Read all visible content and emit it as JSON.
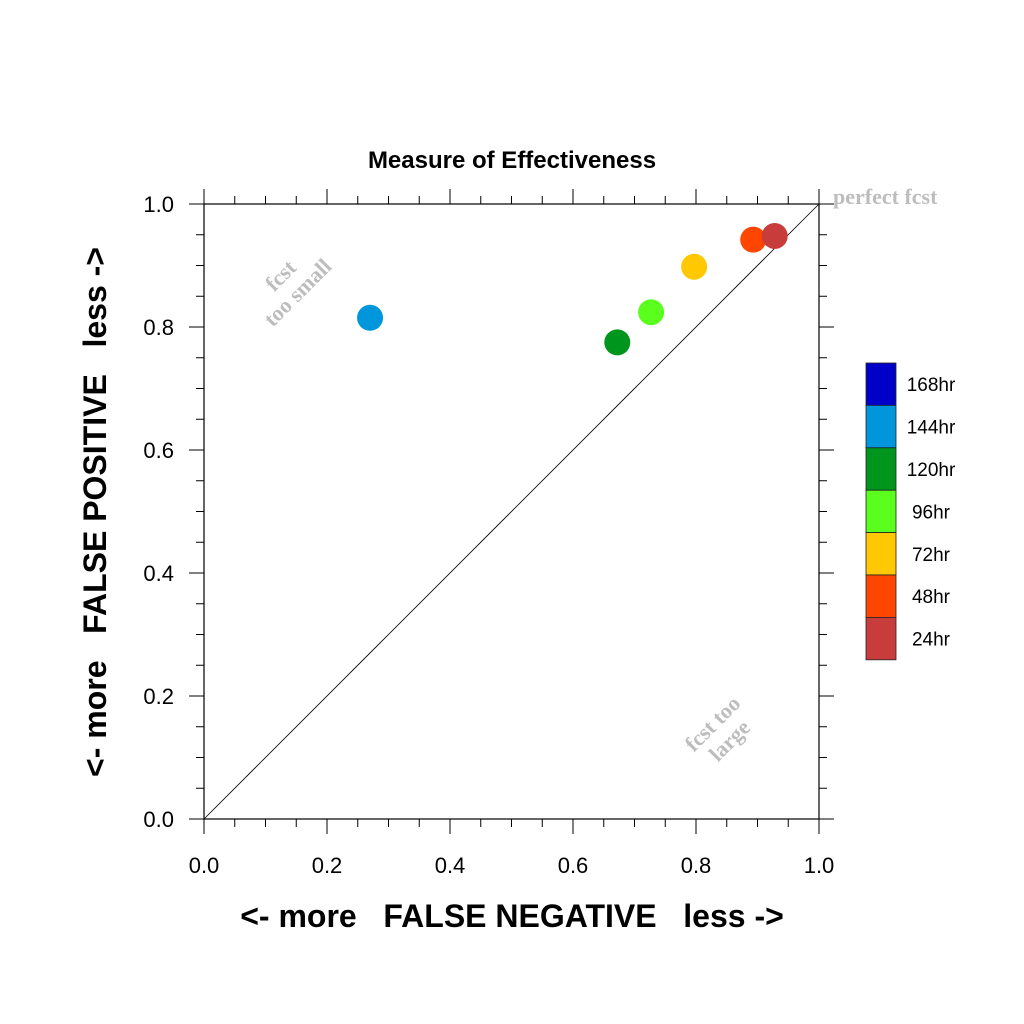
{
  "chart_data": {
    "type": "scatter",
    "title": "Measure of Effectiveness",
    "xlabel": "<- more   FALSE NEGATIVE   less ->",
    "ylabel": "<- more   FALSE POSITIVE   less ->",
    "xlim": [
      0.0,
      1.0
    ],
    "ylim": [
      0.0,
      1.0
    ],
    "x_tick_labels": [
      "0.0",
      "0.2",
      "0.4",
      "0.6",
      "0.8",
      "1.0"
    ],
    "y_tick_labels": [
      "0.0",
      "0.2",
      "0.4",
      "0.6",
      "0.8",
      "1.0"
    ],
    "grid": false,
    "diagonal_line": true,
    "annotations": {
      "perfect": "perfect fcst",
      "small_line1": "fcst",
      "small_line2": "too small",
      "large_line1": "fcst too",
      "large_line2": "large"
    },
    "legend": {
      "placement": "right",
      "entries": [
        {
          "label": "168hr",
          "color": "#0000c8"
        },
        {
          "label": "144hr",
          "color": "#0096dc"
        },
        {
          "label": "120hr",
          "color": "#00961e"
        },
        {
          "label": "96hr",
          "color": "#5aff1e"
        },
        {
          "label": "72hr",
          "color": "#ffc800"
        },
        {
          "label": "48hr",
          "color": "#ff4600"
        },
        {
          "label": "24hr",
          "color": "#c83c3c"
        }
      ]
    },
    "series": [
      {
        "name": "144hr",
        "color": "#0096dc",
        "x": 0.27,
        "y": 0.815
      },
      {
        "name": "120hr",
        "color": "#00961e",
        "x": 0.672,
        "y": 0.775
      },
      {
        "name": "96hr",
        "color": "#5aff1e",
        "x": 0.727,
        "y": 0.824
      },
      {
        "name": "72hr",
        "color": "#ffc800",
        "x": 0.797,
        "y": 0.898
      },
      {
        "name": "48hr",
        "color": "#ff4600",
        "x": 0.893,
        "y": 0.942
      },
      {
        "name": "24hr",
        "color": "#c83c3c",
        "x": 0.928,
        "y": 0.948
      }
    ]
  }
}
